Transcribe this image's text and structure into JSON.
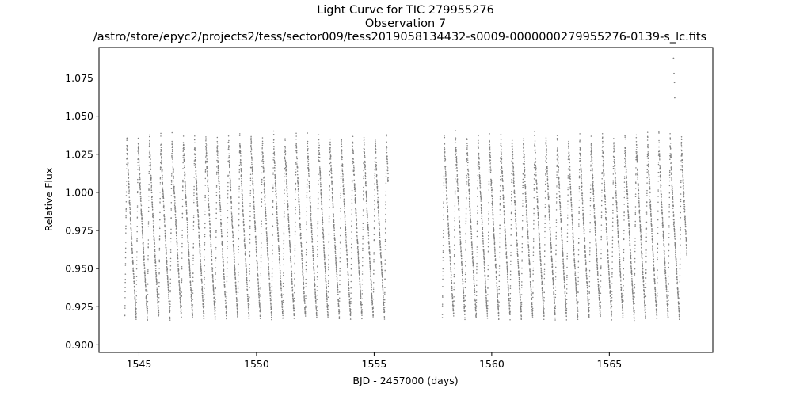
{
  "chart_data": {
    "type": "scatter",
    "title_lines": [
      "Light Curve for TIC 279955276",
      "Observation 7",
      "/astro/store/epyc2/projects2/tess/sector009/tess2019058134432-s0009-0000000279955276-0139-s_lc.fits"
    ],
    "xlabel": "BJD - 2457000 (days)",
    "ylabel": "Relative Flux",
    "xlim": [
      1543.3,
      1569.4
    ],
    "ylim": [
      0.895,
      1.095
    ],
    "xticks": [
      1545,
      1550,
      1555,
      1560,
      1565
    ],
    "xtick_labels": [
      "1545",
      "1550",
      "1555",
      "1560",
      "1565"
    ],
    "yticks": [
      0.9,
      0.925,
      0.95,
      0.975,
      1.0,
      1.025,
      1.05,
      1.075
    ],
    "ytick_labels": [
      "0.900",
      "0.925",
      "0.950",
      "0.975",
      "1.000",
      "1.025",
      "1.050",
      "1.075"
    ],
    "grid": false,
    "marker_color": "#808080",
    "series": [
      {
        "segments": [
          {
            "x_start": 1544.4,
            "x_end": 1555.6
          },
          {
            "x_start": 1557.9,
            "x_end": 1568.3
          }
        ],
        "oscillation_period_days": 0.48,
        "flux_max": 1.04,
        "flux_min": 0.918,
        "outliers": [
          {
            "x": 1567.73,
            "y": 1.088
          },
          {
            "x": 1567.75,
            "y": 1.078
          },
          {
            "x": 1567.77,
            "y": 1.072
          },
          {
            "x": 1567.78,
            "y": 1.062
          }
        ]
      }
    ]
  }
}
